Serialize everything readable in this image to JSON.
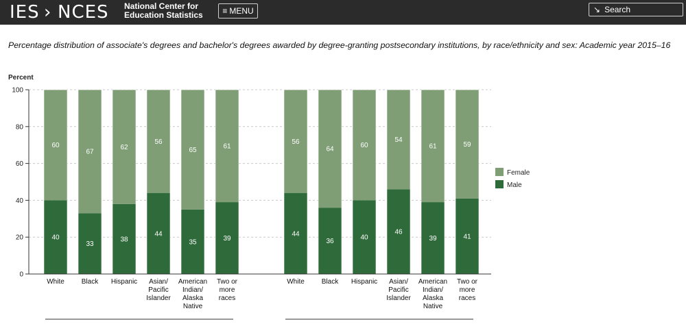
{
  "header": {
    "logo_left": "IES",
    "logo_right": "NCES",
    "brand_line1": "National Center for",
    "brand_line2": "Education Statistics",
    "menu_label": "MENU",
    "menu_icon": "hamburger-icon",
    "search_label": "Search",
    "search_icon": "cursor-icon"
  },
  "title": "Percentage distribution of associate's degrees and bachelor's degrees awarded by degree-granting postsecondary institutions, by race/ethnicity and sex: Academic year 2015–16",
  "colors": {
    "female": "#7f9e75",
    "male": "#2f6a3a",
    "header_bg": "#2b2b2b"
  },
  "chart_data": {
    "type": "bar",
    "stacked": true,
    "ylabel": "Percent",
    "ylim": [
      0,
      100
    ],
    "yticks": [
      0,
      20,
      40,
      60,
      80,
      100
    ],
    "grid": true,
    "legend_position": "right",
    "legend": [
      "Female",
      "Male"
    ],
    "groups": [
      {
        "categories": [
          [
            "White"
          ],
          [
            "Black"
          ],
          [
            "Hispanic"
          ],
          [
            "Asian/",
            "Pacific",
            "Islander"
          ],
          [
            "American",
            "Indian/",
            "Alaska",
            "Native"
          ],
          [
            "Two or",
            "more",
            "races"
          ]
        ],
        "series": [
          {
            "name": "Male",
            "values": [
              40,
              33,
              38,
              44,
              35,
              39
            ]
          },
          {
            "name": "Female",
            "values": [
              60,
              67,
              62,
              56,
              65,
              61
            ]
          }
        ]
      },
      {
        "categories": [
          [
            "White"
          ],
          [
            "Black"
          ],
          [
            "Hispanic"
          ],
          [
            "Asian/",
            "Pacific",
            "Islander"
          ],
          [
            "American",
            "Indian/",
            "Alaska",
            "Native"
          ],
          [
            "Two or",
            "more",
            "races"
          ]
        ],
        "series": [
          {
            "name": "Male",
            "values": [
              44,
              36,
              40,
              46,
              39,
              41
            ]
          },
          {
            "name": "Female",
            "values": [
              56,
              64,
              60,
              54,
              61,
              59
            ]
          }
        ]
      }
    ]
  }
}
